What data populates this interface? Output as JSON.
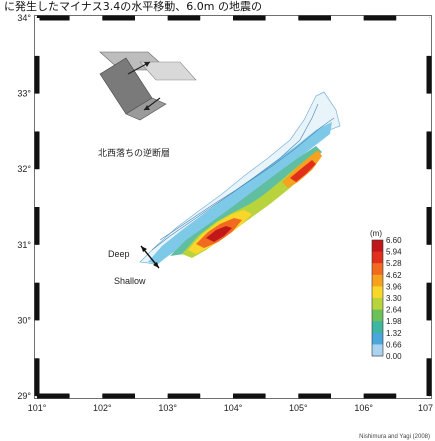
{
  "caption": "に発生したマイナス3.4の水平移動、6.0m の地震の",
  "map": {
    "lat_labels": [
      "34°",
      "33°",
      "32°",
      "31°",
      "30°",
      "29°"
    ],
    "lon_labels": [
      "101°",
      "102°",
      "103°",
      "104°",
      "105°",
      "106°",
      "107"
    ],
    "lat_values": [
      34,
      33,
      32,
      31,
      30,
      29
    ],
    "lon_values": [
      101,
      102,
      103,
      104,
      105,
      106,
      107
    ]
  },
  "fault_note": "北西落ちの逆断層",
  "depth_labels": {
    "deep": "Deep",
    "shallow": "Shallow"
  },
  "colorbar": {
    "unit": "(m)",
    "values": [
      "6.60",
      "5.94",
      "5.28",
      "4.62",
      "3.96",
      "3.30",
      "2.64",
      "1.98",
      "1.32",
      "0.66",
      "0.00"
    ],
    "colors": [
      "#c0181a",
      "#e0301c",
      "#f26a1f",
      "#f7a21e",
      "#f8d72a",
      "#b9d33c",
      "#6cc05a",
      "#3fb6a0",
      "#4aa6dc",
      "#a9d3ef",
      "#ffffff"
    ]
  },
  "credit": "Nishimura and Yagi (2008)"
}
